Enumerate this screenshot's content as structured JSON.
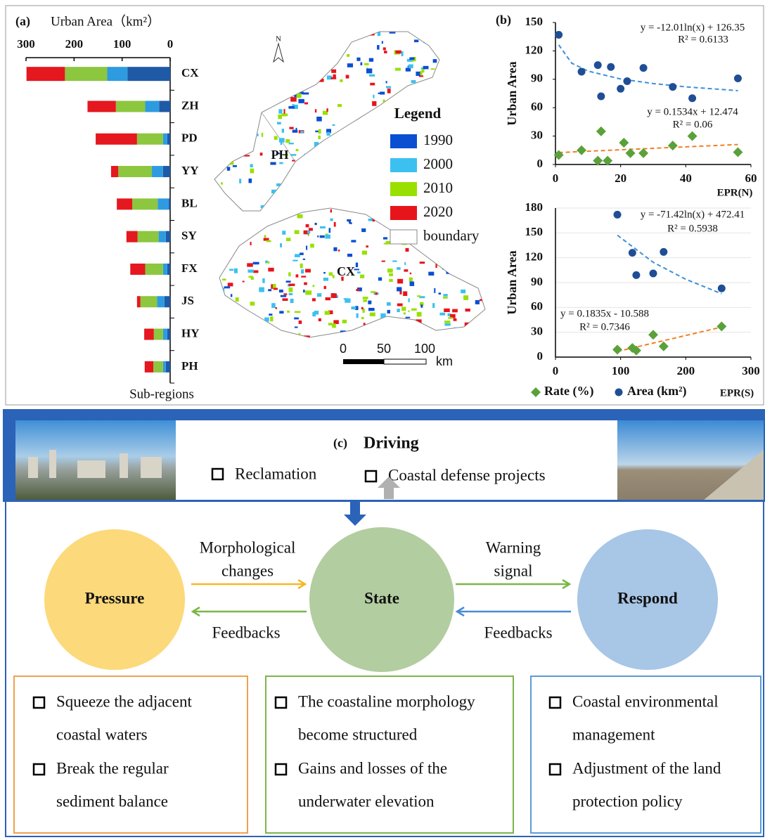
{
  "chart_data": [
    {
      "type": "bar",
      "orientation": "horizontal",
      "stacked": true,
      "panel_label": "(a)",
      "xlabel": "Urban Area（km²）",
      "ylabel": "Sub-regions",
      "categories": [
        "CX",
        "ZH",
        "PD",
        "YY",
        "BL",
        "SY",
        "FX",
        "JS",
        "HY",
        "PH"
      ],
      "series": [
        {
          "name": "1990",
          "color": "#1f5aa6",
          "values": [
            89,
            23,
            6,
            15,
            3,
            9,
            6,
            12,
            6,
            9
          ]
        },
        {
          "name": "2000",
          "color": "#2e9be0",
          "values": [
            42,
            29,
            9,
            23,
            23,
            15,
            9,
            15,
            9,
            6
          ]
        },
        {
          "name": "2010",
          "color": "#8dc63f",
          "values": [
            88,
            61,
            54,
            70,
            53,
            44,
            37,
            35,
            19,
            20
          ]
        },
        {
          "name": "2020",
          "color": "#e5171f",
          "values": [
            80,
            59,
            86,
            15,
            32,
            23,
            31,
            7,
            20,
            18
          ]
        }
      ],
      "xlim": [
        300,
        0
      ],
      "xticks": [
        300,
        200,
        100,
        0
      ]
    },
    {
      "type": "scatter",
      "panel_label": "(b)",
      "xlabel": "EPR(N)",
      "ylabel": "Urban Area",
      "grid": false,
      "xlim": [
        0,
        60
      ],
      "xticks": [
        0,
        20,
        40,
        60
      ],
      "ylim": [
        0,
        150
      ],
      "yticks": [
        0,
        30,
        60,
        90,
        120,
        150
      ],
      "series": [
        {
          "marker": "diamond",
          "color": "#5aa13a",
          "x": [
            1,
            8,
            13,
            14,
            16,
            21,
            23,
            27,
            36,
            42,
            56
          ],
          "values": [
            10,
            15,
            4,
            35,
            4,
            23,
            12,
            12,
            20,
            30,
            13
          ]
        },
        {
          "marker": "circle",
          "color": "#1f4e96",
          "x": [
            1,
            8,
            13,
            14,
            17,
            20,
            22,
            27,
            36,
            42,
            56
          ],
          "values": [
            137,
            98,
            105,
            72,
            103,
            80,
            88,
            102,
            82,
            70,
            91
          ]
        }
      ],
      "trendlines": [
        {
          "equation": "y = -12.01ln(x) + 126.35",
          "r2": "R² = 0.6133",
          "color": "#3d8fd9",
          "x": [
            1,
            5,
            10,
            20,
            30,
            40,
            56
          ],
          "values": [
            126.35,
            107.0,
            98.7,
            90.3,
            85.5,
            82.0,
            78.0
          ]
        },
        {
          "equation": "y = 0.1534x + 12.474",
          "r2": "R² = 0.06",
          "color": "#f08020",
          "x": [
            1,
            56
          ],
          "values": [
            12.6,
            21.1
          ]
        }
      ]
    },
    {
      "type": "scatter",
      "xlabel": "EPR(S)",
      "ylabel": "Urban Area",
      "grid": true,
      "legend": "bottom",
      "xlim": [
        0,
        300
      ],
      "xticks": [
        0,
        100,
        200,
        300
      ],
      "ylim": [
        0,
        180
      ],
      "yticks": [
        0,
        30,
        60,
        90,
        120,
        150,
        180
      ],
      "series": [
        {
          "name": "Rate (%)",
          "marker": "diamond",
          "color": "#5aa13a",
          "x": [
            95,
            118,
            124,
            150,
            166,
            255
          ],
          "values": [
            9,
            11,
            8,
            27,
            13,
            37
          ]
        },
        {
          "name": "Area (km²)",
          "marker": "circle",
          "color": "#1f4e96",
          "x": [
            95,
            118,
            124,
            150,
            166,
            255
          ],
          "values": [
            172,
            126,
            99,
            101,
            127,
            83
          ]
        }
      ],
      "trendlines": [
        {
          "equation": "y = -71.42ln(x) + 472.41",
          "r2": "R² = 0.5938",
          "color": "#3d8fd9",
          "x": [
            95,
            150,
            200,
            255
          ],
          "values": [
            147.2,
            114.5,
            94.0,
            76.6
          ]
        },
        {
          "equation": "y = 0.1835x - 10.588",
          "r2": "R² = 0.7346",
          "color": "#f08020",
          "x": [
            95,
            255
          ],
          "values": [
            6.8,
            36.2
          ]
        }
      ]
    }
  ],
  "map": {
    "north": "N",
    "labels": [
      "PH",
      "CX"
    ],
    "legend_title": "Legend",
    "legend": [
      {
        "label": "1990",
        "color": "#0a4fd1"
      },
      {
        "label": "2000",
        "color": "#3cc0f0"
      },
      {
        "label": "2010",
        "color": "#99e000"
      },
      {
        "label": "2020",
        "color": "#e8141b"
      },
      {
        "label": "boundary",
        "color": "#ffffff"
      }
    ],
    "scale": [
      "0",
      "50",
      "100"
    ],
    "scale_unit": "km"
  },
  "diagram": {
    "label": "(c)",
    "driving": {
      "title": "Driving",
      "items": [
        "Reclamation",
        "Coastal defense projects"
      ]
    },
    "nodes": [
      {
        "label": "Pressure"
      },
      {
        "label": "State"
      },
      {
        "label": "Respond"
      }
    ],
    "links": [
      {
        "label": [
          "Morphological",
          "changes"
        ]
      },
      {
        "label": [
          "Feedbacks"
        ]
      },
      {
        "label": [
          "Warning",
          "signal"
        ]
      },
      {
        "label": [
          "Feedbacks"
        ]
      }
    ],
    "boxes": [
      {
        "items": [
          [
            "Squeeze the adjacent",
            "coastal waters"
          ],
          [
            "Break the regular",
            "sediment balance"
          ]
        ]
      },
      {
        "items": [
          [
            "The coastaline morphology",
            "become structured"
          ],
          [
            "Gains and losses of the",
            "underwater elevation"
          ]
        ]
      },
      {
        "items": [
          [
            "Coastal environmental",
            "management"
          ],
          [
            "Adjustment of the land",
            "protection policy"
          ]
        ]
      }
    ]
  }
}
